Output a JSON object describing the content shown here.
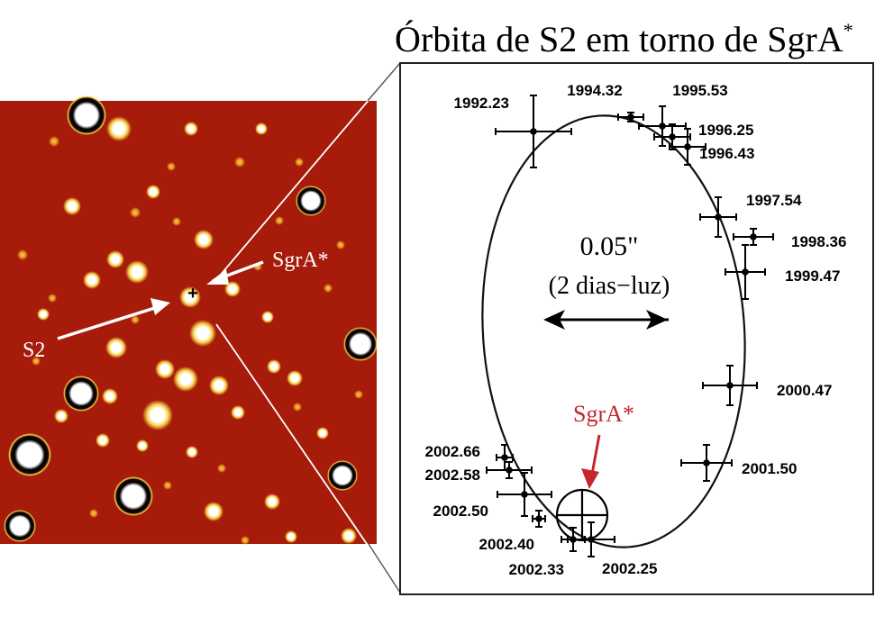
{
  "title": "Órbita de S2 em torno de SgrA",
  "title_superscript": "*",
  "scale_bar": {
    "value": "0.05\"",
    "caption": "(2 dias−luz)"
  },
  "image_labels": {
    "sgra": "SgrA*",
    "s2": "S2",
    "center_marker": "+"
  },
  "orbit_center_label": "SgrA*",
  "colors": {
    "image_background": "#a61b0a",
    "star_glow": "#f7d24a",
    "orbit_center_label": "#c1272d"
  },
  "observations": [
    {
      "epoch": "1992.23"
    },
    {
      "epoch": "1994.32"
    },
    {
      "epoch": "1995.53"
    },
    {
      "epoch": "1996.25"
    },
    {
      "epoch": "1996.43"
    },
    {
      "epoch": "1997.54"
    },
    {
      "epoch": "1998.36"
    },
    {
      "epoch": "1999.47"
    },
    {
      "epoch": "2000.47"
    },
    {
      "epoch": "2001.50"
    },
    {
      "epoch": "2002.25"
    },
    {
      "epoch": "2002.33"
    },
    {
      "epoch": "2002.40"
    },
    {
      "epoch": "2002.50"
    },
    {
      "epoch": "2002.58"
    },
    {
      "epoch": "2002.66"
    }
  ]
}
